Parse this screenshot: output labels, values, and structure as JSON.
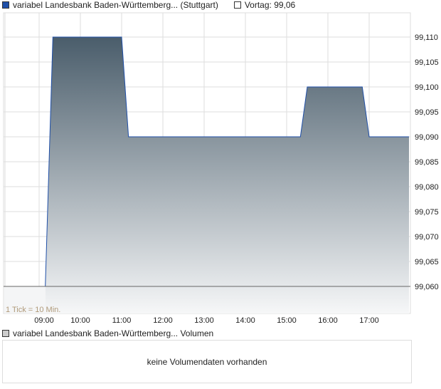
{
  "legend": {
    "series_label": "variabel Landesbank Baden-Württemberg... (Stuttgart)",
    "series_color": "#1f4fa8",
    "prev_label": "Vortag: 99,06"
  },
  "chart_data": {
    "type": "area",
    "x": [
      "09:00",
      "09:09",
      "09:20",
      "11:00",
      "11:10",
      "15:20",
      "15:30",
      "16:50",
      "17:00",
      "18:00"
    ],
    "values": [
      99.06,
      99.06,
      99.11,
      99.11,
      99.09,
      99.09,
      99.1,
      99.1,
      99.09,
      99.09
    ],
    "baseline": 99.06,
    "ylim": [
      99.055,
      99.115
    ],
    "yticks": [
      "99,060",
      "99,065",
      "99,070",
      "99,075",
      "99,080",
      "99,085",
      "99,090",
      "99,095",
      "99,100",
      "99,105",
      "99,110"
    ],
    "xticks": [
      "09:00",
      "10:00",
      "11:00",
      "12:00",
      "13:00",
      "14:00",
      "15:00",
      "16:00",
      "17:00"
    ],
    "annotation": "1 Tick = 10 Min.",
    "grid": true,
    "legend": "top-left"
  },
  "volume": {
    "legend_label": "variabel Landesbank Baden-Württemberg... Volumen",
    "empty_text": "keine Volumendaten vorhanden"
  }
}
